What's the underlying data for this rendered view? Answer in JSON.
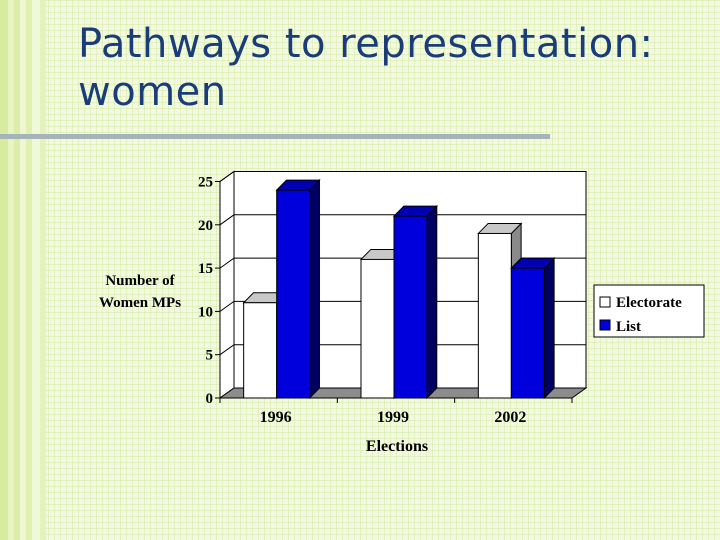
{
  "slide": {
    "title_line1": "Pathways to representation:",
    "title_line2": "women"
  },
  "chart_data": {
    "type": "bar",
    "categories": [
      "1996",
      "1999",
      "2002"
    ],
    "series": [
      {
        "name": "Electorate",
        "values": [
          11,
          16,
          19
        ],
        "color": "#ffffff"
      },
      {
        "name": "List",
        "values": [
          24,
          21,
          15
        ],
        "color": "#0000dd"
      }
    ],
    "xlabel": "Elections",
    "ylabel_line1": "Number of",
    "ylabel_line2": "Women MPs",
    "ylim": [
      0,
      25
    ],
    "yticks": [
      0,
      5,
      10,
      15,
      20,
      25
    ],
    "grid": true,
    "three_d": true,
    "legend_position": "right"
  }
}
